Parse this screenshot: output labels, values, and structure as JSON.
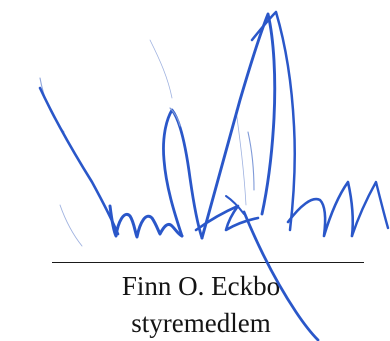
{
  "signatory": {
    "name": "Finn O. Eckbo",
    "title": "styremedlem"
  },
  "colors": {
    "ink": "#2a57c9",
    "ink_faint": "#7f9ad8",
    "text": "#141414",
    "rule": "#1a1a1a"
  }
}
